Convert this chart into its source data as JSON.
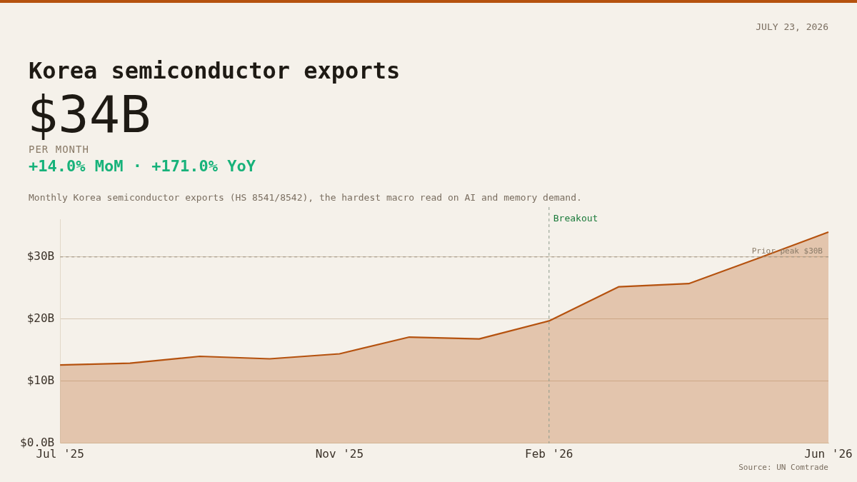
{
  "chart_data": {
    "type": "area",
    "title": "Korea semiconductor exports",
    "subtitle": "Monthly Korea semiconductor exports (HS 8541/8542), the hardest macro read on AI and memory demand.",
    "annotations": [
      "JULY 23, 2026",
      "$34B",
      "PER MONTH",
      "+14.0% MoM · +171.0% YoY",
      "Source: UN Comtrade"
    ],
    "categories": [
      "Jul '25",
      null,
      null,
      null,
      "Nov '25",
      null,
      null,
      "Feb '26",
      null,
      null,
      null,
      "Jun '26"
    ],
    "series": [
      {
        "color": "#b5520f",
        "values": [
          12.6,
          12.9,
          14.0,
          13.6,
          14.4,
          17.1,
          16.8,
          19.7,
          25.2,
          25.7,
          29.8,
          34
        ]
      }
    ],
    "ylim": [
      0,
      36
    ],
    "yticks": [
      {
        "value": 0,
        "label": "$0.0B"
      },
      {
        "value": 10,
        "label": "$10B"
      },
      {
        "value": 20,
        "label": "$20B"
      },
      {
        "value": 30,
        "label": "$30B"
      }
    ],
    "grid": "y",
    "legend": false,
    "marker": "none",
    "line_style": "solid",
    "ref_lines": [
      {
        "axis": "x",
        "value": "Feb '26",
        "label": "Breakout",
        "color": "#8a9a8a",
        "line_style": "dashed"
      },
      {
        "axis": "y",
        "value": 30,
        "label": "Prior peak $30B",
        "color": "#9a9080",
        "line_style": "dashed"
      }
    ]
  }
}
